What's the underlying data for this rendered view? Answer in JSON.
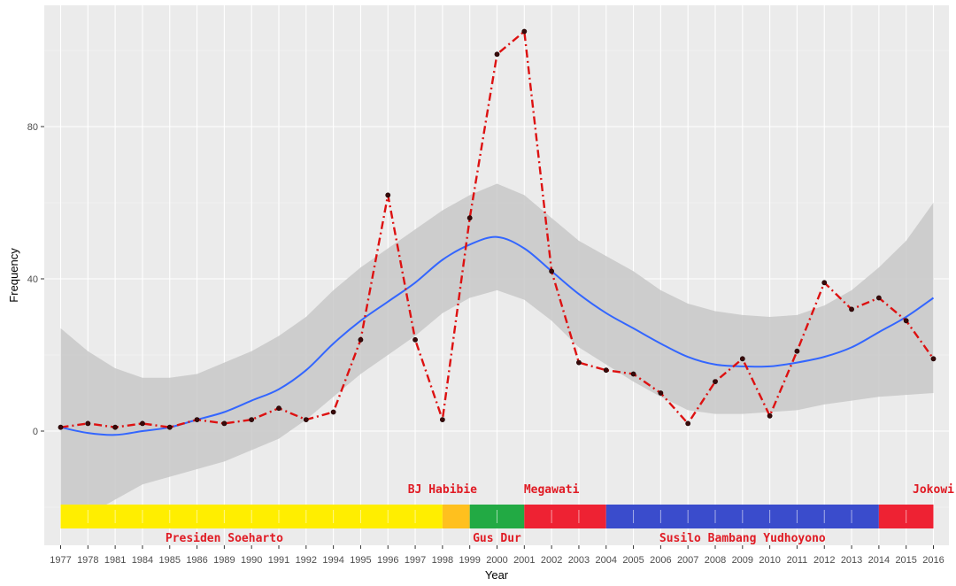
{
  "chart_data": {
    "type": "line",
    "title": "",
    "xlabel": "Year",
    "ylabel": "Frequency",
    "ylim": [
      -30,
      112
    ],
    "yticks": [
      0,
      40,
      80
    ],
    "x": [
      "1977",
      "1978",
      "1981",
      "1984",
      "1985",
      "1986",
      "1989",
      "1990",
      "1991",
      "1992",
      "1994",
      "1995",
      "1996",
      "1997",
      "1998",
      "1999",
      "2000",
      "2001",
      "2002",
      "2003",
      "2004",
      "2005",
      "2006",
      "2007",
      "2008",
      "2009",
      "2010",
      "2011",
      "2012",
      "2013",
      "2014",
      "2015",
      "2016"
    ],
    "series": [
      {
        "name": "Frequency",
        "style": "dashed-red-with-points",
        "color": "#dd1111",
        "values": [
          1,
          2,
          1,
          2,
          1,
          3,
          2,
          3,
          6,
          3,
          5,
          24,
          62,
          24,
          3,
          56,
          99,
          105,
          42,
          18,
          16,
          15,
          10,
          2,
          13,
          19,
          4,
          21,
          39,
          32,
          35,
          29,
          19
        ]
      },
      {
        "name": "Smoothed trend",
        "style": "smooth",
        "color": "#3366ff",
        "values": [
          1,
          -0.5,
          -1,
          0,
          1,
          3,
          5,
          8,
          11,
          16,
          23,
          29,
          34,
          39,
          45,
          49,
          51,
          48,
          42,
          36,
          31,
          27,
          23,
          19.5,
          17.5,
          17,
          17,
          18,
          19.5,
          22,
          26,
          30,
          35
        ]
      }
    ],
    "confidence_band": {
      "color": "#c8c8c8",
      "upper": [
        27,
        21,
        16.5,
        14,
        14,
        15,
        18,
        21,
        25,
        30,
        37,
        43,
        48,
        53,
        58,
        62,
        65,
        62,
        56,
        50,
        46,
        42,
        37,
        33.5,
        31.5,
        30.5,
        30,
        30.5,
        33,
        37,
        43,
        50,
        60
      ],
      "lower": [
        -25,
        -22,
        -18,
        -14,
        -12,
        -10,
        -8,
        -5,
        -2,
        3,
        9,
        15,
        20,
        25,
        31,
        35,
        37,
        34.5,
        29,
        22,
        17.5,
        13,
        9,
        5.5,
        4.5,
        4.5,
        5,
        5.5,
        7,
        8,
        9,
        9.5,
        10
      ]
    },
    "presidential_terms": [
      {
        "label": "Presiden Soeharto",
        "start": "1977",
        "end": "1998",
        "color": "#ffee00",
        "label_position": "below",
        "label_anchor": "1989"
      },
      {
        "label": "BJ Habibie",
        "start": "1998",
        "end": "1999",
        "color": "#ffc01e",
        "label_position": "above",
        "label_anchor": "1998"
      },
      {
        "label": "Gus Dur",
        "start": "1999",
        "end": "2001",
        "color": "#22aa44",
        "label_position": "below",
        "label_anchor": "2000"
      },
      {
        "label": "Megawati",
        "start": "2001",
        "end": "2004",
        "color": "#ee2233",
        "label_position": "above",
        "label_anchor": "2002"
      },
      {
        "label": "Susilo Bambang Yudhoyono",
        "start": "2004",
        "end": "2014",
        "color": "#3a4ccc",
        "label_position": "below",
        "label_anchor": "2009"
      },
      {
        "label": "Jokowi",
        "start": "2014",
        "end": "2016",
        "color": "#ee2233",
        "label_position": "above",
        "label_anchor": "2016"
      }
    ],
    "term_label_color": "#e01b24",
    "panel_background": "#ebebeb",
    "grid_color": "#ffffff",
    "grid": true,
    "legend": "none"
  }
}
